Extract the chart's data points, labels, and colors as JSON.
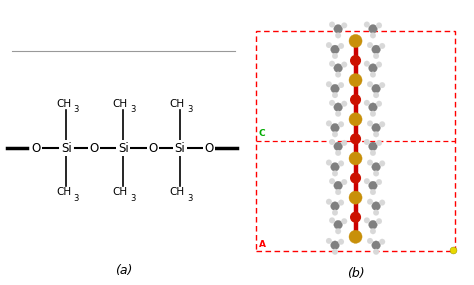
{
  "label_a": "(a)",
  "label_b": "(b)",
  "bg_color": "#ffffff",
  "dashed_box_color": "#ff0000",
  "green_label": "C",
  "red_label": "A",
  "yellow_dot_color": "#e8d800",
  "mol_chain_color": "#cc0000",
  "si_color": "#c8900a",
  "o_color": "#cc1100",
  "c_color": "#808080",
  "h_color": "#cccccc",
  "font_size_labels": 9
}
